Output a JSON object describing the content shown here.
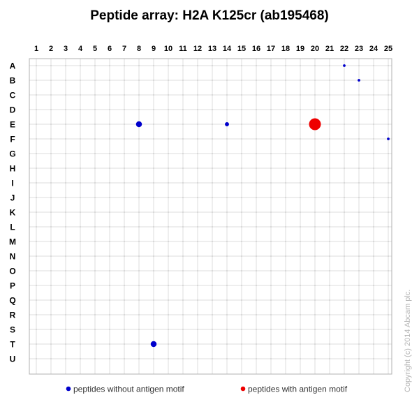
{
  "chart_data": {
    "type": "scatter",
    "title": "Peptide array:  H2A K125cr (ab195468)",
    "columns": [
      "1",
      "2",
      "3",
      "4",
      "5",
      "6",
      "7",
      "8",
      "9",
      "10",
      "11",
      "12",
      "13",
      "14",
      "15",
      "16",
      "17",
      "18",
      "19",
      "20",
      "21",
      "22",
      "23",
      "24",
      "25"
    ],
    "rows": [
      "A",
      "B",
      "C",
      "D",
      "E",
      "F",
      "G",
      "H",
      "I",
      "J",
      "K",
      "L",
      "M",
      "N",
      "O",
      "P",
      "Q",
      "R",
      "S",
      "T",
      "U"
    ],
    "grid": true,
    "series": [
      {
        "name": "peptides without antigen motif",
        "color": "#0000cc",
        "points": [
          {
            "col": "22",
            "row": "A",
            "size": 0.05
          },
          {
            "col": "23",
            "row": "B",
            "size": 0.05
          },
          {
            "col": "8",
            "row": "E",
            "size": 0.25
          },
          {
            "col": "14",
            "row": "E",
            "size": 0.12
          },
          {
            "col": "25",
            "row": "F",
            "size": 0.05
          },
          {
            "col": "9",
            "row": "T",
            "size": 0.25
          }
        ]
      },
      {
        "name": "peptides with antigen motif",
        "color": "#ee0000",
        "points": [
          {
            "col": "20",
            "row": "E",
            "size": 1.0
          }
        ]
      }
    ],
    "legend": {
      "position": "bottom",
      "items": [
        {
          "label": "peptides without antigen motif",
          "color": "#0000cc"
        },
        {
          "label": "peptides with antigen motif",
          "color": "#ee0000"
        }
      ]
    },
    "copyright": "Copyright (c) 2014 Abcam plc."
  }
}
